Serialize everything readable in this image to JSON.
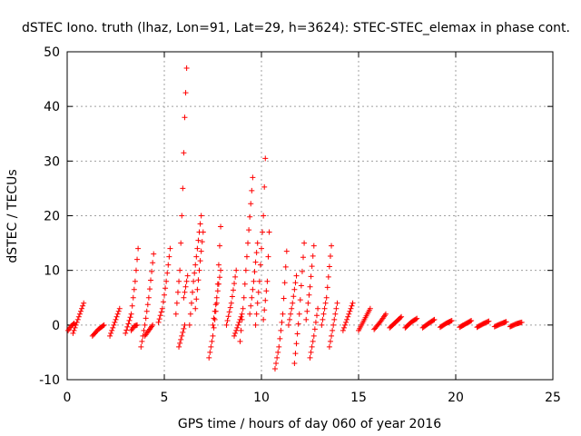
{
  "chart_data": {
    "type": "scatter",
    "title": "dSTEC Iono. truth (lhaz, Lon=91, Lat=29, h=3624): STEC-STEC_elemax in phase cont.",
    "xlabel": "GPS time / hours of day 060 of year 2016",
    "ylabel": "dSTEC  / TECUs",
    "xlim": [
      0,
      25
    ],
    "ylim": [
      -10,
      50
    ],
    "xticks": [
      0,
      5,
      10,
      15,
      20,
      25
    ],
    "yticks": [
      -10,
      0,
      10,
      20,
      30,
      40,
      50
    ],
    "grid": true,
    "marker": "plus",
    "color": "#ff0000",
    "arcs": [
      {
        "t": [
          0.3,
          0.5,
          0.7,
          0.85
        ],
        "v": [
          -1.5,
          0.5,
          2.5,
          4
        ]
      },
      {
        "t": [
          0.05,
          0.2,
          0.35
        ],
        "v": [
          -1,
          -0.2,
          0.3
        ]
      },
      {
        "t": [
          1.3,
          1.6,
          1.9
        ],
        "v": [
          -2,
          -0.8,
          0
        ]
      },
      {
        "t": [
          2.2,
          2.45,
          2.7
        ],
        "v": [
          -2,
          0.5,
          3
        ]
      },
      {
        "t": [
          3.0,
          3.3,
          3.5,
          3.65
        ],
        "v": [
          -1.5,
          2,
          8,
          14
        ]
      },
      {
        "t": [
          3.3,
          3.45,
          3.6
        ],
        "v": [
          -1,
          -0.2,
          0
        ]
      },
      {
        "t": [
          3.8,
          4.0,
          4.2,
          4.45
        ],
        "v": [
          -4,
          0,
          5,
          13
        ]
      },
      {
        "t": [
          4.0,
          4.2,
          4.4
        ],
        "v": [
          -2,
          -1,
          0
        ]
      },
      {
        "t": [
          4.7,
          4.9,
          5.1,
          5.3
        ],
        "v": [
          0.5,
          3,
          8,
          14
        ]
      },
      {
        "t": [
          5.6,
          5.8,
          5.95,
          6.05,
          6.15
        ],
        "v": [
          2,
          10,
          25,
          38,
          47
        ]
      },
      {
        "t": [
          5.75,
          5.9,
          6.05
        ],
        "v": [
          -4,
          -2,
          0
        ]
      },
      {
        "t": [
          6.0,
          6.2
        ],
        "v": [
          5,
          9
        ]
      },
      {
        "t": [
          6.3,
          6.5,
          6.7,
          6.9
        ],
        "v": [
          0,
          8,
          14,
          20
        ]
      },
      {
        "t": [
          6.6,
          6.8,
          7.0
        ],
        "v": [
          3,
          10,
          17
        ]
      },
      {
        "t": [
          7.3,
          7.5,
          7.7,
          7.9
        ],
        "v": [
          -6,
          -2,
          4,
          18
        ]
      },
      {
        "t": [
          7.5,
          7.7,
          7.9
        ],
        "v": [
          0,
          5,
          10
        ]
      },
      {
        "t": [
          8.2,
          8.45,
          8.7
        ],
        "v": [
          0,
          4,
          10
        ]
      },
      {
        "t": [
          8.6,
          8.8,
          9.0
        ],
        "v": [
          -2,
          0,
          2
        ]
      },
      {
        "t": [
          8.9,
          9.1,
          9.3,
          9.55
        ],
        "v": [
          -3,
          5,
          15,
          27
        ]
      },
      {
        "t": [
          9.4,
          9.6,
          9.8
        ],
        "v": [
          2,
          8,
          15
        ]
      },
      {
        "t": [
          9.7,
          9.9,
          10.1,
          10.2
        ],
        "v": [
          0,
          8,
          20,
          30.5
        ]
      },
      {
        "t": [
          10.1,
          10.3,
          10.4
        ],
        "v": [
          1,
          8,
          17
        ]
      },
      {
        "t": [
          10.7,
          10.9,
          11.1,
          11.3
        ],
        "v": [
          -8,
          -4,
          2,
          13.5
        ]
      },
      {
        "t": [
          11.4,
          11.6,
          11.8
        ],
        "v": [
          0,
          4,
          9
        ]
      },
      {
        "t": [
          11.7,
          11.95,
          12.2
        ],
        "v": [
          -7,
          2,
          15
        ]
      },
      {
        "t": [
          12.3,
          12.5,
          12.7
        ],
        "v": [
          1,
          7,
          14.5
        ]
      },
      {
        "t": [
          12.5,
          12.7,
          12.9
        ],
        "v": [
          -6,
          -2,
          3
        ]
      },
      {
        "t": [
          13.1,
          13.35,
          13.6
        ],
        "v": [
          0,
          5,
          14.5
        ]
      },
      {
        "t": [
          13.5,
          13.7,
          13.9
        ],
        "v": [
          -4,
          0,
          4
        ]
      },
      {
        "t": [
          14.2,
          14.45,
          14.7
        ],
        "v": [
          -1,
          1.5,
          4
        ]
      },
      {
        "t": [
          15.0,
          15.3,
          15.6
        ],
        "v": [
          -1,
          1,
          3
        ]
      },
      {
        "t": [
          15.8,
          16.1,
          16.4
        ],
        "v": [
          -0.8,
          0.5,
          2
        ]
      },
      {
        "t": [
          16.6,
          16.9,
          17.2
        ],
        "v": [
          -0.5,
          0.5,
          1.5
        ]
      },
      {
        "t": [
          17.4,
          17.7,
          18.0
        ],
        "v": [
          -0.5,
          0.5,
          1.2
        ]
      },
      {
        "t": [
          18.3,
          18.6,
          18.9
        ],
        "v": [
          -0.5,
          0.3,
          1
        ]
      },
      {
        "t": [
          19.2,
          19.5,
          19.8
        ],
        "v": [
          -0.4,
          0.3,
          0.8
        ]
      },
      {
        "t": [
          20.2,
          20.5,
          20.8
        ],
        "v": [
          -0.4,
          0.2,
          0.8
        ]
      },
      {
        "t": [
          21.1,
          21.4,
          21.7
        ],
        "v": [
          -0.4,
          0.2,
          0.7
        ]
      },
      {
        "t": [
          22.0,
          22.3,
          22.6
        ],
        "v": [
          -0.3,
          0.2,
          0.6
        ]
      },
      {
        "t": [
          22.8,
          23.1,
          23.4
        ],
        "v": [
          -0.3,
          0.2,
          0.5
        ]
      }
    ]
  }
}
